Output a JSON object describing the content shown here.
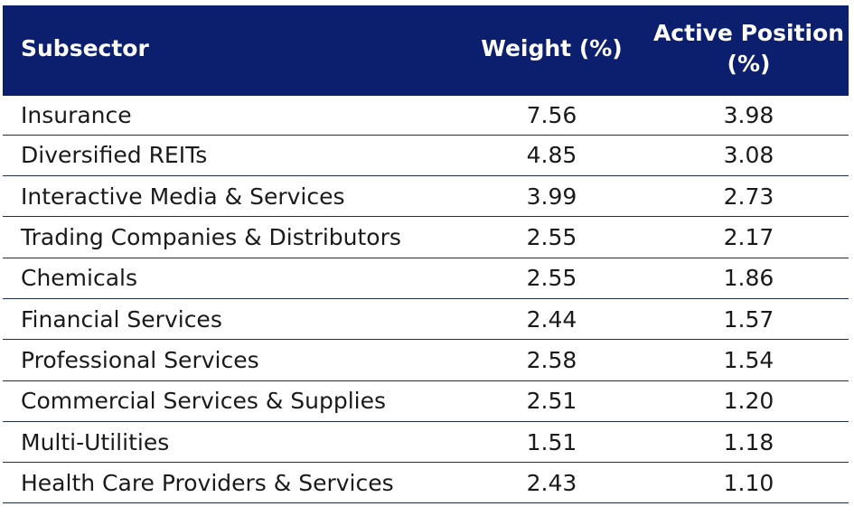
{
  "chart_data": {
    "type": "table",
    "columns": [
      "Subsector",
      "Weight (%)",
      "Active Position (%)"
    ],
    "rows": [
      {
        "subsector": "Insurance",
        "weight": "7.56",
        "active": "3.98"
      },
      {
        "subsector": "Diversified REITs",
        "weight": "4.85",
        "active": "3.08"
      },
      {
        "subsector": "Interactive Media & Services",
        "weight": "3.99",
        "active": "2.73"
      },
      {
        "subsector": "Trading Companies & Distributors",
        "weight": "2.55",
        "active": "2.17"
      },
      {
        "subsector": "Chemicals",
        "weight": "2.55",
        "active": "1.86"
      },
      {
        "subsector": "Financial Services",
        "weight": "2.44",
        "active": "1.57"
      },
      {
        "subsector": "Professional Services",
        "weight": "2.58",
        "active": "1.54"
      },
      {
        "subsector": "Commercial Services & Supplies",
        "weight": "2.51",
        "active": "1.20"
      },
      {
        "subsector": "Multi-Utilities",
        "weight": "1.51",
        "active": "1.18"
      },
      {
        "subsector": "Health Care Providers & Services",
        "weight": "2.43",
        "active": "1.10"
      }
    ]
  },
  "colors": {
    "header_bg": "#0b1f6e",
    "header_text": "#ffffff",
    "row_divider": "#1f2d4f"
  }
}
